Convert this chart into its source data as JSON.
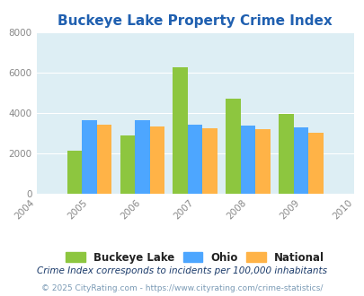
{
  "title": "Buckeye Lake Property Crime Index",
  "years": [
    2005,
    2006,
    2007,
    2008,
    2009
  ],
  "buckeye_lake": [
    2150,
    2900,
    6300,
    4700,
    3950
  ],
  "ohio": [
    3650,
    3650,
    3450,
    3400,
    3300
  ],
  "national": [
    3450,
    3350,
    3250,
    3200,
    3050
  ],
  "color_buckeye": "#8dc63f",
  "color_ohio": "#4da6ff",
  "color_national": "#ffb347",
  "xlim_min": 2004,
  "xlim_max": 2010,
  "ylim": [
    0,
    8000
  ],
  "yticks": [
    0,
    2000,
    4000,
    6000,
    8000
  ],
  "xticks": [
    2004,
    2005,
    2006,
    2007,
    2008,
    2009,
    2010
  ],
  "bg_color": "#ddeef4",
  "legend_labels": [
    "Buckeye Lake",
    "Ohio",
    "National"
  ],
  "footnote1": "Crime Index corresponds to incidents per 100,000 inhabitants",
  "footnote2": "© 2025 CityRating.com - https://www.cityrating.com/crime-statistics/",
  "title_color": "#2060b0",
  "footnote1_color": "#1a3a6a",
  "footnote2_color": "#7a9ab5",
  "bar_width": 0.28
}
